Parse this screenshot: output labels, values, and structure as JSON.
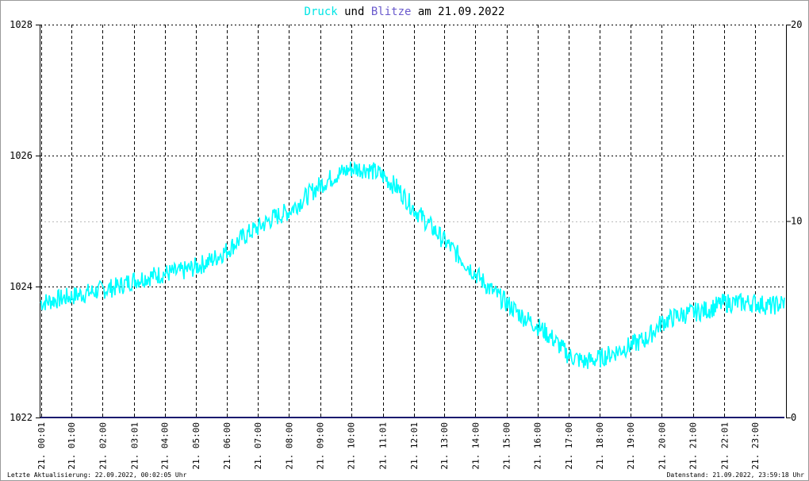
{
  "title": {
    "part1": "Druck",
    "part2": "und",
    "part3": "Blitze",
    "part4": "am 21.09.2022"
  },
  "footer": {
    "left": "Letzte Aktualisierung: 22.09.2022, 00:02:05 Uhr",
    "right": "Datenstand: 21.09.2022, 23:59:18 Uhr"
  },
  "colors": {
    "pressure": "#00ffff",
    "lightning": "#4b3aa8",
    "title_druck": "#00e5e5",
    "title_blitze": "#6a5acd",
    "baseline": "#1a1a6e"
  },
  "chart_data": {
    "type": "line",
    "title": "Druck und Blitze am 21.09.2022",
    "x_tick_labels": [
      "21. 00:01",
      "21. 01:00",
      "21. 02:00",
      "21. 03:01",
      "21. 04:00",
      "21. 05:00",
      "21. 06:00",
      "21. 07:00",
      "21. 08:00",
      "21. 09:00",
      "21. 10:00",
      "21. 11:01",
      "21. 12:01",
      "21. 13:00",
      "21. 14:00",
      "21. 15:00",
      "21. 16:00",
      "21. 17:00",
      "21. 18:00",
      "21. 19:00",
      "21. 20:00",
      "21. 21:00",
      "21. 22:01",
      "21. 23:00"
    ],
    "x_tick_hours": [
      0.02,
      1,
      2,
      3.02,
      4,
      5,
      6,
      7,
      8,
      9,
      10,
      11.02,
      12.02,
      13,
      14,
      15,
      16,
      17,
      18,
      19,
      20,
      21,
      22.02,
      23
    ],
    "xlim": [
      0,
      24
    ],
    "y_left": {
      "ticks": [
        1022,
        1024,
        1026,
        1028
      ],
      "lim": [
        1022,
        1028
      ]
    },
    "y_right": {
      "ticks": [
        0,
        10,
        20
      ],
      "lim": [
        0,
        20
      ]
    },
    "grid": true,
    "series": [
      {
        "name": "Druck",
        "axis": "left",
        "x_hours": [
          0,
          0.5,
          1,
          1.5,
          2,
          2.5,
          3,
          3.5,
          4,
          4.5,
          5,
          5.5,
          6,
          6.5,
          7,
          7.5,
          8,
          8.5,
          9,
          9.5,
          10,
          10.5,
          11,
          11.5,
          12,
          12.5,
          13,
          13.5,
          14,
          14.5,
          15,
          15.5,
          16,
          16.5,
          17,
          17.5,
          18,
          18.5,
          19,
          19.5,
          20,
          20.5,
          21,
          21.5,
          22,
          22.5,
          23,
          23.5,
          23.95
        ],
        "values": [
          1023.75,
          1023.8,
          1023.85,
          1023.9,
          1023.95,
          1024.0,
          1024.1,
          1024.15,
          1024.2,
          1024.22,
          1024.3,
          1024.4,
          1024.55,
          1024.75,
          1024.9,
          1025.05,
          1025.15,
          1025.35,
          1025.55,
          1025.7,
          1025.8,
          1025.8,
          1025.7,
          1025.5,
          1025.2,
          1024.95,
          1024.7,
          1024.45,
          1024.2,
          1023.95,
          1023.75,
          1023.55,
          1023.4,
          1023.2,
          1022.95,
          1022.85,
          1022.9,
          1023.0,
          1023.1,
          1023.2,
          1023.45,
          1023.55,
          1023.6,
          1023.65,
          1023.75,
          1023.75,
          1023.75,
          1023.7,
          1023.75
        ]
      },
      {
        "name": "Blitze",
        "axis": "right",
        "x_hours": [
          0,
          23.95
        ],
        "values": [
          0,
          0
        ]
      }
    ]
  }
}
